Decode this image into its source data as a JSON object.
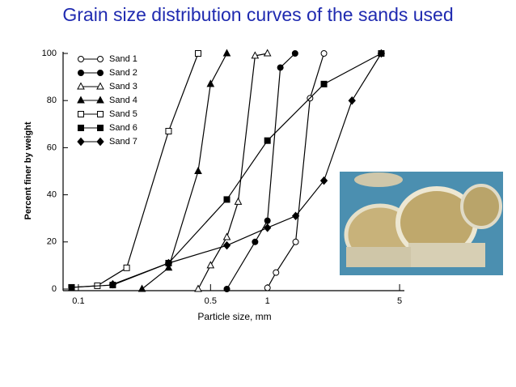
{
  "chart_data": {
    "type": "line",
    "title": "Grain size distribution curves of the sands used",
    "x_label": "Particle size, mm",
    "y_label": "Percent finer by weight",
    "xscale": "log",
    "xlim": [
      0.083,
      5.3
    ],
    "ylim": [
      0,
      100
    ],
    "xticks": [
      0.1,
      0.5,
      1,
      5
    ],
    "yticks": [
      0,
      20,
      40,
      60,
      80,
      100
    ],
    "legend": "upper left",
    "series": [
      {
        "name": "Sand 1",
        "color": "#000000",
        "marker": "circle-open",
        "x": [
          1.0,
          1.11,
          1.41,
          1.68,
          1.99
        ],
        "values": [
          0.5,
          7,
          20,
          81,
          100
        ]
      },
      {
        "name": "Sand 2",
        "color": "#000000",
        "marker": "circle-filled",
        "x": [
          0.61,
          0.86,
          1.0,
          1.17,
          1.4
        ],
        "values": [
          0,
          20,
          29,
          94,
          100
        ]
      },
      {
        "name": "Sand 3",
        "color": "#000000",
        "marker": "triangle-open",
        "x": [
          0.43,
          0.5,
          0.61,
          0.7,
          0.86,
          1.0
        ],
        "values": [
          0,
          10,
          22,
          37,
          99,
          100
        ]
      },
      {
        "name": "Sand 4",
        "color": "#000000",
        "marker": "triangle-filled",
        "x": [
          0.217,
          0.3,
          0.43,
          0.5,
          0.61
        ],
        "values": [
          0,
          9,
          50,
          87,
          100
        ]
      },
      {
        "name": "Sand 5",
        "color": "#000000",
        "marker": "square-open",
        "x": [
          0.092,
          0.126,
          0.18,
          0.3,
          0.43
        ],
        "values": [
          0.7,
          1.4,
          9,
          67,
          100
        ]
      },
      {
        "name": "Sand 6",
        "color": "#000000",
        "marker": "square-filled",
        "x": [
          0.092,
          0.152,
          0.3,
          0.61,
          1.0,
          1.99,
          4.0
        ],
        "values": [
          0.7,
          1.7,
          11,
          38,
          63,
          87,
          100
        ]
      },
      {
        "name": "Sand 7",
        "color": "#000000",
        "marker": "diamond-filled",
        "x": [
          0.152,
          0.3,
          0.61,
          1.0,
          1.41,
          1.99,
          2.8,
          4.0
        ],
        "values": [
          2,
          11,
          18.5,
          26,
          31,
          46,
          80,
          100
        ]
      }
    ]
  }
}
